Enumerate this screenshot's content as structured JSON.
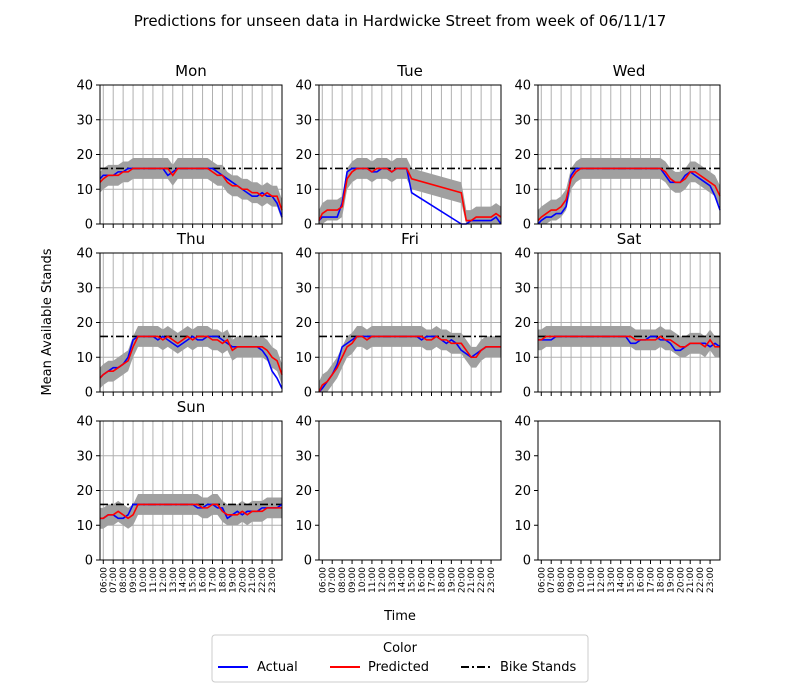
{
  "chart_data": {
    "type": "line",
    "title": "Predictions for unseen data in Hardwicke Street from week of 06/11/17",
    "xlabel": "Time",
    "ylabel": "Mean Available Stands",
    "ylim": [
      0,
      40
    ],
    "yticks": [
      "0",
      "10",
      "20",
      "30",
      "40"
    ],
    "x_ticks": [
      "06:00",
      "07:00",
      "08:00",
      "09:00",
      "10:00",
      "11:00",
      "12:00",
      "13:00",
      "14:00",
      "15:00",
      "16:00",
      "17:00",
      "18:00",
      "19:00",
      "20:00",
      "21:00",
      "22:00",
      "23:00"
    ],
    "x_range": [
      5.67,
      24.0
    ],
    "grid": true,
    "colors": {
      "actual": "#0000ff",
      "predicted": "#ff0000",
      "bike_stands": "#000000",
      "band": "#a0a0a0",
      "grid": "#b0b0b0"
    },
    "legend": {
      "title": "Color",
      "placement": "bottom-center",
      "entries": [
        {
          "label": "Actual",
          "style": "solid",
          "color": "#0000ff"
        },
        {
          "label": "Predicted",
          "style": "solid",
          "color": "#ff0000"
        },
        {
          "label": "Bike Stands",
          "style": "dashdot",
          "color": "#000000"
        }
      ]
    },
    "bike_stands": 16,
    "panels": [
      {
        "title": "Mon",
        "x": [
          5.67,
          6,
          6.5,
          7,
          7.5,
          8,
          8.5,
          9,
          9.5,
          10,
          10.5,
          11,
          11.5,
          12,
          12.5,
          13,
          13.5,
          14,
          14.5,
          15,
          15.5,
          16,
          16.5,
          17,
          17.5,
          18,
          18.5,
          19,
          19.5,
          20,
          20.5,
          21,
          21.5,
          22,
          22.5,
          23,
          23.5,
          24
        ],
        "actual": [
          13,
          14,
          14,
          14,
          15,
          15,
          16,
          16,
          16,
          16,
          16,
          16,
          16,
          16,
          14,
          15,
          16,
          16,
          16,
          16,
          16,
          16,
          16,
          16,
          15,
          14,
          13,
          12,
          11,
          10,
          9,
          8,
          8,
          9,
          8,
          8,
          6,
          2
        ],
        "predicted": [
          12,
          13,
          14,
          14,
          14,
          15,
          15,
          16,
          16,
          16,
          16,
          16,
          16,
          16,
          16,
          14,
          16,
          16,
          16,
          16,
          16,
          16,
          16,
          15,
          14,
          14,
          12,
          11,
          11,
          10,
          10,
          9,
          9,
          8,
          9,
          8,
          8,
          4
        ]
      },
      {
        "title": "Tue",
        "x": [
          5.67,
          6,
          6.5,
          7,
          7.5,
          8,
          8.5,
          9,
          9.5,
          10,
          10.5,
          11,
          11.5,
          12,
          12.5,
          13,
          13.5,
          14,
          14.5,
          15,
          20,
          20.5,
          21,
          21.5,
          22,
          22.5,
          23,
          23.5,
          24
        ],
        "actual": [
          1,
          2,
          2,
          2,
          2,
          6,
          15,
          16,
          16,
          16,
          16,
          15,
          15,
          16,
          16,
          15,
          16,
          16,
          16,
          9,
          0,
          0,
          1,
          1,
          1,
          1,
          1,
          2,
          0
        ],
        "predicted": [
          1,
          3,
          4,
          4,
          4,
          5,
          13,
          15,
          16,
          16,
          16,
          15,
          16,
          16,
          16,
          15,
          16,
          16,
          16,
          13,
          9,
          1,
          1,
          2,
          2,
          2,
          2,
          3,
          2
        ]
      },
      {
        "title": "Wed",
        "x": [
          5.67,
          6,
          6.5,
          7,
          7.5,
          8,
          8.5,
          9,
          9.5,
          10,
          10.5,
          11,
          11.5,
          12,
          12.5,
          13,
          13.5,
          14,
          14.5,
          15,
          15.5,
          16,
          16.5,
          17,
          17.5,
          18,
          18.5,
          19,
          19.5,
          20,
          20.5,
          21,
          21.5,
          22,
          22.5,
          23,
          23.5,
          24
        ],
        "actual": [
          0,
          1,
          2,
          2,
          3,
          3,
          5,
          14,
          16,
          16,
          16,
          16,
          16,
          16,
          16,
          16,
          16,
          16,
          16,
          16,
          16,
          16,
          16,
          16,
          16,
          16,
          14,
          12,
          12,
          12,
          14,
          15,
          14,
          13,
          12,
          11,
          8,
          4
        ],
        "predicted": [
          1,
          2,
          3,
          4,
          4,
          5,
          7,
          13,
          15,
          16,
          16,
          16,
          16,
          16,
          16,
          16,
          16,
          16,
          16,
          16,
          16,
          16,
          16,
          16,
          16,
          16,
          15,
          13,
          12,
          12,
          13,
          15,
          15,
          14,
          13,
          12,
          11,
          8
        ]
      },
      {
        "title": "Thu",
        "x": [
          5.67,
          6,
          6.5,
          7,
          7.5,
          8,
          8.5,
          9,
          9.5,
          10,
          10.5,
          11,
          11.5,
          12,
          12.5,
          13,
          13.5,
          14,
          14.5,
          15,
          15.5,
          16,
          16.5,
          17,
          17.5,
          18,
          18.5,
          19,
          19.5,
          20,
          20.5,
          21,
          21.5,
          22,
          22.5,
          23,
          23.5,
          24
        ],
        "actual": [
          4,
          5,
          6,
          7,
          7,
          8,
          10,
          15,
          16,
          16,
          16,
          16,
          15,
          16,
          15,
          14,
          13,
          14,
          15,
          16,
          15,
          15,
          16,
          16,
          16,
          15,
          14,
          13,
          13,
          13,
          13,
          13,
          13,
          12,
          10,
          6,
          4,
          1
        ],
        "predicted": [
          4,
          5,
          6,
          6,
          7,
          8,
          9,
          13,
          16,
          16,
          16,
          16,
          16,
          15,
          16,
          15,
          14,
          15,
          16,
          15,
          16,
          16,
          16,
          15,
          15,
          14,
          15,
          12,
          13,
          13,
          13,
          13,
          13,
          13,
          12,
          10,
          9,
          5
        ]
      },
      {
        "title": "Fri",
        "x": [
          5.67,
          6,
          6.5,
          7,
          7.5,
          8,
          8.5,
          9,
          9.5,
          10,
          10.5,
          11,
          11.5,
          12,
          12.5,
          13,
          13.5,
          14,
          14.5,
          15,
          15.5,
          16,
          16.5,
          17,
          17.5,
          18,
          18.5,
          19,
          19.5,
          20,
          20.5,
          21,
          21.5,
          22,
          22.5,
          23,
          23.5,
          24
        ],
        "actual": [
          0,
          1,
          3,
          5,
          8,
          13,
          14,
          15,
          16,
          16,
          16,
          16,
          16,
          16,
          16,
          16,
          16,
          16,
          16,
          16,
          16,
          15,
          16,
          16,
          16,
          15,
          14,
          15,
          14,
          12,
          11,
          10,
          11,
          12,
          13,
          13,
          13,
          13
        ],
        "predicted": [
          0,
          2,
          3,
          5,
          7,
          10,
          13,
          14,
          16,
          16,
          15,
          16,
          16,
          16,
          16,
          16,
          16,
          16,
          16,
          16,
          16,
          16,
          15,
          15,
          16,
          15,
          15,
          14,
          14,
          14,
          12,
          10,
          10,
          12,
          13,
          13,
          13,
          13
        ]
      },
      {
        "title": "Sat",
        "x": [
          5.67,
          6,
          6.5,
          7,
          7.5,
          8,
          8.5,
          9,
          9.5,
          10,
          10.5,
          11,
          11.5,
          12,
          12.5,
          13,
          13.5,
          14,
          14.5,
          15,
          15.5,
          16,
          16.5,
          17,
          17.5,
          18,
          18.5,
          19,
          19.5,
          20,
          20.5,
          21,
          21.5,
          22,
          22.5,
          23,
          23.5,
          24
        ],
        "actual": [
          15,
          15,
          15,
          15,
          16,
          16,
          16,
          16,
          16,
          16,
          16,
          16,
          16,
          16,
          16,
          16,
          16,
          16,
          16,
          14,
          14,
          15,
          15,
          16,
          16,
          15,
          15,
          14,
          12,
          12,
          13,
          14,
          14,
          14,
          14,
          13,
          14,
          13
        ],
        "predicted": [
          15,
          15,
          16,
          16,
          16,
          16,
          16,
          16,
          16,
          16,
          16,
          16,
          16,
          16,
          16,
          16,
          16,
          16,
          16,
          16,
          15,
          15,
          15,
          15,
          15,
          16,
          15,
          15,
          14,
          13,
          13,
          14,
          14,
          14,
          13,
          15,
          13,
          13
        ]
      },
      {
        "title": "Sun",
        "x": [
          5.67,
          6,
          6.5,
          7,
          7.5,
          8,
          8.5,
          9,
          9.5,
          10,
          10.5,
          11,
          11.5,
          12,
          12.5,
          13,
          13.5,
          14,
          14.5,
          15,
          15.5,
          16,
          16.5,
          17,
          17.5,
          18,
          18.5,
          19,
          19.5,
          20,
          20.5,
          21,
          21.5,
          22,
          22.5,
          23,
          23.5,
          24
        ],
        "actual": [
          12,
          12,
          13,
          13,
          12,
          12,
          13,
          16,
          16,
          16,
          16,
          16,
          16,
          16,
          16,
          16,
          16,
          16,
          16,
          16,
          15,
          15,
          16,
          16,
          15,
          15,
          12,
          13,
          14,
          13,
          14,
          14,
          14,
          15,
          15,
          15,
          15,
          16
        ],
        "predicted": [
          12,
          12,
          13,
          13,
          14,
          13,
          12,
          13,
          16,
          16,
          16,
          16,
          16,
          16,
          16,
          16,
          16,
          16,
          16,
          16,
          16,
          15,
          15,
          16,
          16,
          14,
          13,
          13,
          13,
          14,
          13,
          14,
          14,
          14,
          15,
          15,
          15,
          15
        ]
      }
    ],
    "empty_panels": 2
  }
}
